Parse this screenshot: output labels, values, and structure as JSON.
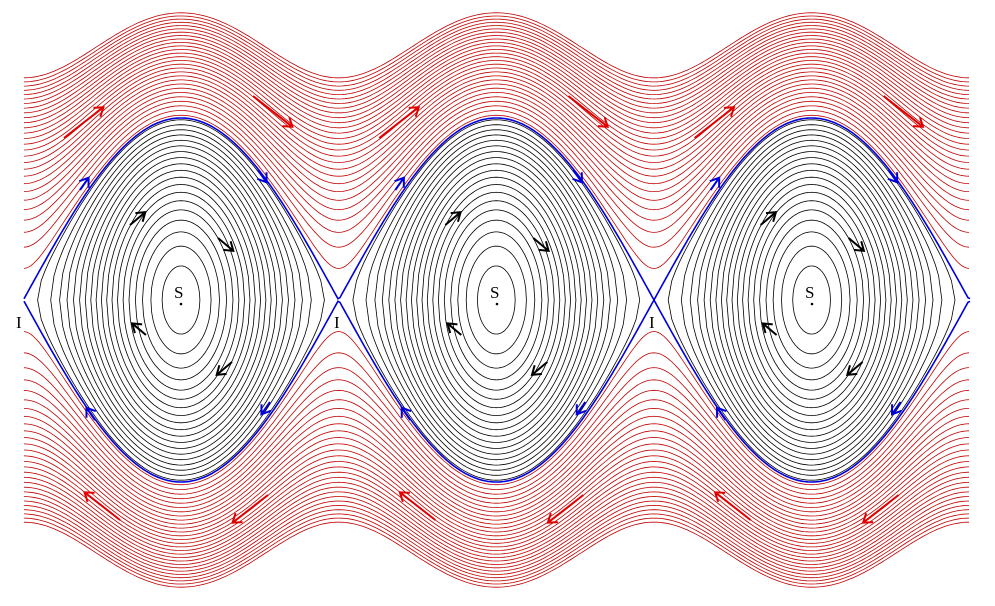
{
  "centers": [
    "S",
    "S",
    "S"
  ],
  "saddles": [
    "I",
    "I",
    "I"
  ]
}
